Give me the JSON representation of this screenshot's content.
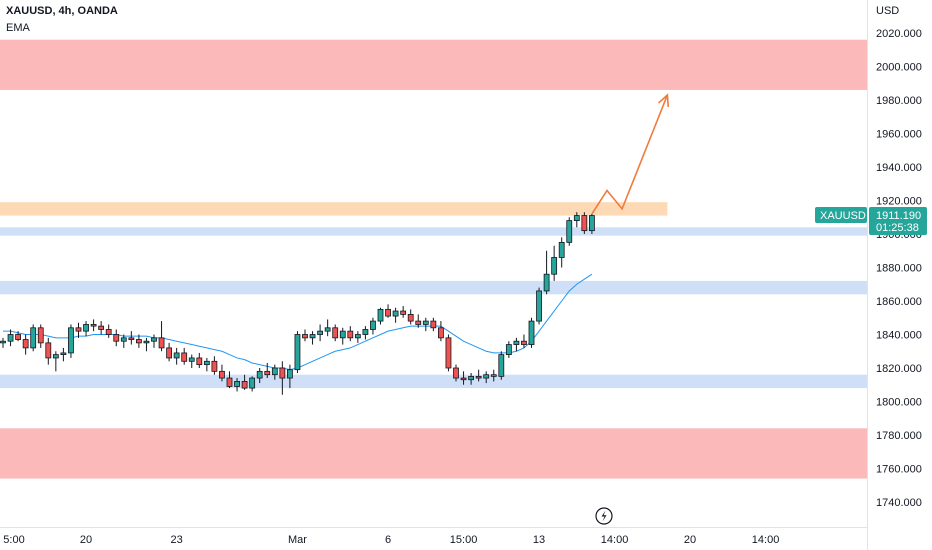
{
  "header": {
    "symbol": "XAUUSD, 4h, OANDA",
    "indicator": "EMA"
  },
  "price_axis": {
    "unit": "USD"
  },
  "colors": {
    "bull": "#26a69a",
    "bear": "#ef5350",
    "candle_outline": "#131722",
    "ema": "#2196f3",
    "arrow": "#f07b3f",
    "resistance": "#fbb9b9",
    "supply": "#fdd9b5",
    "support": "#cfdff8",
    "tag": "#26a69a"
  },
  "chart_data": {
    "type": "candlestick",
    "title": "XAUUSD, 4h, OANDA",
    "ylim": [
      1730,
      2035
    ],
    "yticks": [
      1740,
      1760,
      1780,
      1800,
      1820,
      1840,
      1860,
      1880,
      1900,
      1920,
      1940,
      1960,
      1980,
      2000,
      2020
    ],
    "ytick_labels": [
      "1740.000",
      "1760.000",
      "1780.000",
      "1800.000",
      "1820.000",
      "1840.000",
      "1860.000",
      "1880.000",
      "1900.000",
      "1920.000",
      "1940.000",
      "1960.000",
      "1980.000",
      "2000.000",
      "2020.000"
    ],
    "xlim": [
      0,
      108
    ],
    "xticks": [
      {
        "label": "5:00",
        "at": 0
      },
      {
        "label": "20",
        "at": 11
      },
      {
        "label": "23",
        "at": 23
      },
      {
        "label": "Mar",
        "at": 39
      },
      {
        "label": "6",
        "at": 51
      },
      {
        "label": "15:00",
        "at": 61
      },
      {
        "label": "13",
        "at": 71
      },
      {
        "label": "14:00",
        "at": 81
      },
      {
        "label": "20",
        "at": 91
      },
      {
        "label": "14:00",
        "at": 101
      }
    ],
    "zones": [
      {
        "kind": "resistance",
        "from": 1986,
        "to": 2016,
        "x_end": 108
      },
      {
        "kind": "supply",
        "from": 1911,
        "to": 1919,
        "x_end": 88
      },
      {
        "kind": "support",
        "from": 1899,
        "to": 1904,
        "x_end": 108
      },
      {
        "kind": "support",
        "from": 1864,
        "to": 1872,
        "x_end": 108
      },
      {
        "kind": "support",
        "from": 1808,
        "to": 1816,
        "x_end": 108
      },
      {
        "kind": "resistance",
        "from": 1754,
        "to": 1784,
        "x_end": 108
      }
    ],
    "candles": [
      [
        1835,
        1838,
        1832,
        1836
      ],
      [
        1836,
        1843,
        1833,
        1840
      ],
      [
        1840,
        1842,
        1836,
        1837
      ],
      [
        1837,
        1840,
        1828,
        1832
      ],
      [
        1832,
        1846,
        1830,
        1844
      ],
      [
        1844,
        1846,
        1832,
        1835
      ],
      [
        1835,
        1838,
        1822,
        1826
      ],
      [
        1826,
        1830,
        1818,
        1828
      ],
      [
        1828,
        1832,
        1824,
        1829
      ],
      [
        1829,
        1846,
        1826,
        1844
      ],
      [
        1844,
        1847,
        1838,
        1842
      ],
      [
        1842,
        1848,
        1839,
        1846
      ],
      [
        1846,
        1849,
        1842,
        1845
      ],
      [
        1845,
        1848,
        1840,
        1843
      ],
      [
        1843,
        1846,
        1838,
        1840
      ],
      [
        1840,
        1843,
        1833,
        1836
      ],
      [
        1836,
        1840,
        1832,
        1838
      ],
      [
        1838,
        1842,
        1834,
        1837
      ],
      [
        1837,
        1840,
        1832,
        1835
      ],
      [
        1835,
        1838,
        1830,
        1836
      ],
      [
        1836,
        1840,
        1832,
        1838
      ],
      [
        1838,
        1848,
        1830,
        1832
      ],
      [
        1832,
        1835,
        1824,
        1826
      ],
      [
        1826,
        1832,
        1822,
        1829
      ],
      [
        1829,
        1832,
        1822,
        1824
      ],
      [
        1824,
        1828,
        1820,
        1826
      ],
      [
        1826,
        1829,
        1820,
        1822
      ],
      [
        1822,
        1826,
        1818,
        1824
      ],
      [
        1824,
        1827,
        1816,
        1818
      ],
      [
        1818,
        1822,
        1812,
        1814
      ],
      [
        1814,
        1818,
        1808,
        1809
      ],
      [
        1809,
        1814,
        1806,
        1812
      ],
      [
        1812,
        1816,
        1807,
        1808
      ],
      [
        1808,
        1815,
        1806,
        1814
      ],
      [
        1814,
        1820,
        1811,
        1818
      ],
      [
        1818,
        1823,
        1814,
        1816
      ],
      [
        1816,
        1822,
        1813,
        1820
      ],
      [
        1820,
        1824,
        1804,
        1814
      ],
      [
        1814,
        1822,
        1808,
        1819
      ],
      [
        1819,
        1842,
        1817,
        1840
      ],
      [
        1840,
        1843,
        1836,
        1838
      ],
      [
        1838,
        1842,
        1834,
        1840
      ],
      [
        1840,
        1846,
        1836,
        1842
      ],
      [
        1842,
        1849,
        1839,
        1844
      ],
      [
        1844,
        1846,
        1836,
        1838
      ],
      [
        1838,
        1844,
        1834,
        1842
      ],
      [
        1842,
        1845,
        1836,
        1838
      ],
      [
        1838,
        1842,
        1835,
        1840
      ],
      [
        1840,
        1845,
        1837,
        1843
      ],
      [
        1843,
        1850,
        1840,
        1848
      ],
      [
        1848,
        1856,
        1846,
        1855
      ],
      [
        1855,
        1858,
        1850,
        1851
      ],
      [
        1851,
        1856,
        1847,
        1854
      ],
      [
        1854,
        1857,
        1850,
        1852
      ],
      [
        1852,
        1855,
        1846,
        1848
      ],
      [
        1848,
        1852,
        1844,
        1846
      ],
      [
        1846,
        1850,
        1842,
        1848
      ],
      [
        1848,
        1850,
        1842,
        1844
      ],
      [
        1844,
        1848,
        1836,
        1838
      ],
      [
        1838,
        1840,
        1818,
        1820
      ],
      [
        1820,
        1822,
        1812,
        1814
      ],
      [
        1814,
        1818,
        1810,
        1813
      ],
      [
        1813,
        1817,
        1810,
        1815
      ],
      [
        1815,
        1819,
        1812,
        1814
      ],
      [
        1814,
        1818,
        1811,
        1816
      ],
      [
        1816,
        1819,
        1812,
        1815
      ],
      [
        1815,
        1830,
        1813,
        1828
      ],
      [
        1828,
        1836,
        1826,
        1834
      ],
      [
        1834,
        1838,
        1830,
        1836
      ],
      [
        1836,
        1840,
        1832,
        1834
      ],
      [
        1834,
        1850,
        1832,
        1848
      ],
      [
        1848,
        1868,
        1846,
        1866
      ],
      [
        1866,
        1890,
        1864,
        1876
      ],
      [
        1876,
        1893,
        1872,
        1886
      ],
      [
        1886,
        1898,
        1880,
        1895
      ],
      [
        1895,
        1910,
        1893,
        1908
      ],
      [
        1908,
        1913,
        1904,
        1911
      ],
      [
        1911,
        1913,
        1900,
        1902
      ],
      [
        1902,
        1912,
        1900,
        1911
      ]
    ],
    "ema": [
      1842,
      1842,
      1841,
      1840,
      1840,
      1840,
      1839,
      1838,
      1838,
      1838,
      1839,
      1839,
      1840,
      1840,
      1840,
      1840,
      1839,
      1839,
      1839,
      1839,
      1838,
      1838,
      1837,
      1836,
      1835,
      1834,
      1833,
      1832,
      1831,
      1830,
      1828,
      1826,
      1825,
      1823,
      1822,
      1821,
      1820,
      1820,
      1819,
      1820,
      1822,
      1824,
      1826,
      1828,
      1830,
      1831,
      1832,
      1834,
      1836,
      1838,
      1840,
      1842,
      1843,
      1844,
      1845,
      1845,
      1845,
      1845,
      1845,
      1842,
      1839,
      1836,
      1834,
      1832,
      1830,
      1829,
      1829,
      1829,
      1830,
      1832,
      1836,
      1842,
      1848,
      1854,
      1860,
      1866,
      1870,
      1873,
      1876
    ],
    "arrow_path": [
      [
        78,
        1912
      ],
      [
        80,
        1926
      ],
      [
        82,
        1915
      ],
      [
        88,
        1983
      ]
    ],
    "last_price": {
      "symbol": "XAUUSD",
      "price": "1911.190",
      "countdown": "01:25:38",
      "value": 1911.19
    }
  }
}
